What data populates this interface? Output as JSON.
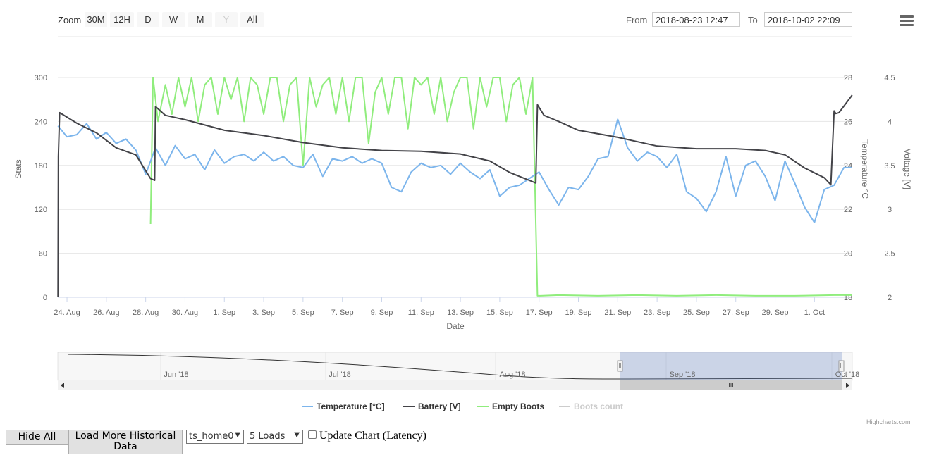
{
  "range_selector": {
    "zoom_label": "Zoom",
    "buttons": [
      "30M",
      "12H",
      "D",
      "W",
      "M",
      "Y",
      "All"
    ],
    "disabled_button": "Y",
    "from_label": "From",
    "from_value": "2018-08-23 12:47",
    "to_label": "To",
    "to_value": "2018-10-02 22:09"
  },
  "menu_icon": "hamburger-menu-icon",
  "chart_data": {
    "type": "line",
    "xlabel": "Date",
    "x_ticks": [
      "24. Aug",
      "26. Aug",
      "28. Aug",
      "30. Aug",
      "1. Sep",
      "3. Sep",
      "5. Sep",
      "7. Sep",
      "9. Sep",
      "11. Sep",
      "13. Sep",
      "15. Sep",
      "17. Sep",
      "19. Sep",
      "21. Sep",
      "23. Sep",
      "25. Sep",
      "27. Sep",
      "29. Sep",
      "1. Oct"
    ],
    "x_range": [
      "2018-08-23 12:47",
      "2018-10-02 22:09"
    ],
    "axes": {
      "stats": {
        "label": "Stats",
        "ticks": [
          "0",
          "60",
          "120",
          "180",
          "240",
          "300"
        ],
        "range": [
          0,
          300
        ]
      },
      "temperature": {
        "label": "Temperature °C",
        "ticks": [
          "18",
          "20",
          "22",
          "24",
          "26",
          "28"
        ],
        "range": [
          18,
          28
        ]
      },
      "voltage": {
        "label": "Voltage [V]",
        "ticks": [
          "2",
          "2.5",
          "3",
          "3.5",
          "4",
          "4.5"
        ],
        "range": [
          2,
          4.5
        ]
      }
    },
    "grid": true,
    "series": [
      {
        "name": "Temperature [°C]",
        "color": "#7cb5ec",
        "axis": "temperature",
        "x": [
          "2018-08-23 13:00",
          "2018-08-24 00:00",
          "2018-08-24 12:00",
          "2018-08-25 00:00",
          "2018-08-25 12:00",
          "2018-08-26 00:00",
          "2018-08-26 12:00",
          "2018-08-27 00:00",
          "2018-08-27 12:00",
          "2018-08-28 00:00",
          "2018-08-28 12:00",
          "2018-08-29 00:00",
          "2018-08-29 12:00",
          "2018-08-30 00:00",
          "2018-08-30 12:00",
          "2018-08-31 00:00",
          "2018-08-31 12:00",
          "2018-09-01 00:00",
          "2018-09-01 12:00",
          "2018-09-02 00:00",
          "2018-09-02 12:00",
          "2018-09-03 00:00",
          "2018-09-03 12:00",
          "2018-09-04 00:00",
          "2018-09-04 12:00",
          "2018-09-05 00:00",
          "2018-09-05 12:00",
          "2018-09-06 00:00",
          "2018-09-06 12:00",
          "2018-09-07 00:00",
          "2018-09-07 12:00",
          "2018-09-08 00:00",
          "2018-09-08 12:00",
          "2018-09-09 00:00",
          "2018-09-09 12:00",
          "2018-09-10 00:00",
          "2018-09-10 12:00",
          "2018-09-11 00:00",
          "2018-09-11 12:00",
          "2018-09-12 00:00",
          "2018-09-12 12:00",
          "2018-09-13 00:00",
          "2018-09-13 12:00",
          "2018-09-14 00:00",
          "2018-09-14 12:00",
          "2018-09-15 00:00",
          "2018-09-15 12:00",
          "2018-09-16 00:00",
          "2018-09-16 12:00",
          "2018-09-17 00:00",
          "2018-09-17 12:00",
          "2018-09-18 00:00",
          "2018-09-18 12:00",
          "2018-09-19 00:00",
          "2018-09-19 12:00",
          "2018-09-20 00:00",
          "2018-09-20 12:00",
          "2018-09-21 00:00",
          "2018-09-21 12:00",
          "2018-09-22 00:00",
          "2018-09-22 12:00",
          "2018-09-23 00:00",
          "2018-09-23 12:00",
          "2018-09-24 00:00",
          "2018-09-24 12:00",
          "2018-09-25 00:00",
          "2018-09-25 12:00",
          "2018-09-26 00:00",
          "2018-09-26 12:00",
          "2018-09-27 00:00",
          "2018-09-27 12:00",
          "2018-09-28 00:00",
          "2018-09-28 12:00",
          "2018-09-29 00:00",
          "2018-09-29 12:00",
          "2018-09-30 00:00",
          "2018-09-30 12:00",
          "2018-10-01 00:00",
          "2018-10-01 12:00",
          "2018-10-02 00:00",
          "2018-10-02 12:00",
          "2018-10-02 22:00"
        ],
        "values": [
          25.8,
          25.3,
          25.4,
          25.9,
          25.2,
          25.5,
          25.0,
          25.2,
          24.7,
          23.6,
          24.8,
          24.0,
          24.9,
          24.3,
          24.5,
          23.8,
          24.7,
          24.1,
          24.4,
          24.5,
          24.2,
          24.6,
          24.2,
          24.4,
          24.0,
          23.9,
          24.5,
          23.5,
          24.3,
          24.2,
          24.4,
          24.1,
          24.3,
          24.1,
          23.0,
          22.8,
          23.7,
          24.1,
          23.9,
          24.0,
          23.6,
          24.1,
          23.7,
          23.4,
          23.8,
          22.6,
          23.0,
          23.1,
          23.4,
          23.7,
          22.9,
          22.2,
          23.0,
          22.9,
          23.5,
          24.3,
          24.4,
          26.1,
          24.8,
          24.2,
          24.6,
          24.4,
          23.9,
          24.5,
          22.8,
          22.5,
          21.9,
          22.8,
          24.4,
          22.6,
          24.0,
          24.2,
          23.5,
          22.4,
          24.2,
          23.2,
          22.1,
          21.4,
          22.9,
          23.1,
          23.9,
          23.9
        ]
      },
      {
        "name": "Battery [V]",
        "color": "#434348",
        "axis": "voltage",
        "x": [
          "2018-08-23 13:00",
          "2018-08-23 13:30",
          "2018-08-23 15:00",
          "2018-08-24 12:00",
          "2018-08-25 12:00",
          "2018-08-26 12:00",
          "2018-08-27 12:00",
          "2018-08-28 06:00",
          "2018-08-28 11:00",
          "2018-08-28 12:00",
          "2018-08-29 00:00",
          "2018-08-30 00:00",
          "2018-09-01 00:00",
          "2018-09-03 00:00",
          "2018-09-05 00:00",
          "2018-09-07 00:00",
          "2018-09-09 00:00",
          "2018-09-11 00:00",
          "2018-09-13 00:00",
          "2018-09-14 12:00",
          "2018-09-15 12:00",
          "2018-09-16 12:00",
          "2018-09-16 20:00",
          "2018-09-16 22:00",
          "2018-09-17 06:00",
          "2018-09-18 00:00",
          "2018-09-19 00:00",
          "2018-09-21 00:00",
          "2018-09-23 00:00",
          "2018-09-25 00:00",
          "2018-09-27 00:00",
          "2018-09-28 12:00",
          "2018-09-29 12:00",
          "2018-09-30 12:00",
          "2018-10-01 12:00",
          "2018-10-01 20:00",
          "2018-10-02 00:00",
          "2018-10-02 02:00",
          "2018-10-02 06:00",
          "2018-10-02 22:00"
        ],
        "values": [
          2.0,
          3.6,
          4.1,
          3.98,
          3.87,
          3.7,
          3.62,
          3.35,
          3.33,
          4.17,
          4.07,
          4.02,
          3.9,
          3.84,
          3.76,
          3.7,
          3.67,
          3.66,
          3.63,
          3.55,
          3.42,
          3.33,
          3.3,
          4.19,
          4.07,
          4.0,
          3.9,
          3.82,
          3.72,
          3.69,
          3.69,
          3.67,
          3.62,
          3.47,
          3.36,
          3.28,
          4.12,
          4.09,
          4.1,
          4.3
        ]
      },
      {
        "name": "Empty Boots",
        "color": "#90ed7d",
        "axis": "stats",
        "x": [
          "2018-08-28 06:00",
          "2018-08-28 09:00",
          "2018-08-28 15:00",
          "2018-08-29 00:00",
          "2018-08-29 08:00",
          "2018-08-29 16:00",
          "2018-08-30 00:00",
          "2018-08-30 08:00",
          "2018-08-30 16:00",
          "2018-08-31 00:00",
          "2018-08-31 08:00",
          "2018-08-31 16:00",
          "2018-09-01 00:00",
          "2018-09-01 08:00",
          "2018-09-01 16:00",
          "2018-09-02 00:00",
          "2018-09-02 08:00",
          "2018-09-02 16:00",
          "2018-09-03 00:00",
          "2018-09-03 08:00",
          "2018-09-03 16:00",
          "2018-09-04 00:00",
          "2018-09-04 08:00",
          "2018-09-04 16:00",
          "2018-09-05 00:00",
          "2018-09-05 08:00",
          "2018-09-05 16:00",
          "2018-09-06 00:00",
          "2018-09-06 08:00",
          "2018-09-06 16:00",
          "2018-09-07 00:00",
          "2018-09-07 08:00",
          "2018-09-07 16:00",
          "2018-09-08 00:00",
          "2018-09-08 08:00",
          "2018-09-08 16:00",
          "2018-09-09 00:00",
          "2018-09-09 08:00",
          "2018-09-09 16:00",
          "2018-09-10 00:00",
          "2018-09-10 08:00",
          "2018-09-10 16:00",
          "2018-09-11 00:00",
          "2018-09-11 08:00",
          "2018-09-11 16:00",
          "2018-09-12 00:00",
          "2018-09-12 08:00",
          "2018-09-12 16:00",
          "2018-09-13 00:00",
          "2018-09-13 08:00",
          "2018-09-13 16:00",
          "2018-09-14 00:00",
          "2018-09-14 08:00",
          "2018-09-14 16:00",
          "2018-09-15 00:00",
          "2018-09-15 08:00",
          "2018-09-15 16:00",
          "2018-09-16 00:00",
          "2018-09-16 08:00",
          "2018-09-16 16:00",
          "2018-09-16 22:00",
          "2018-09-17 02:00",
          "2018-09-18 00:00",
          "2018-09-20 00:00",
          "2018-09-22 00:00",
          "2018-09-24 00:00",
          "2018-09-26 00:00",
          "2018-09-28 00:00",
          "2018-09-30 00:00",
          "2018-10-02 00:00",
          "2018-10-02 22:00"
        ],
        "values": [
          100,
          300,
          240,
          290,
          250,
          300,
          260,
          300,
          240,
          290,
          300,
          250,
          300,
          270,
          300,
          240,
          300,
          290,
          250,
          300,
          300,
          240,
          290,
          300,
          180,
          300,
          260,
          290,
          300,
          250,
          300,
          240,
          300,
          300,
          210,
          280,
          300,
          250,
          300,
          300,
          230,
          300,
          290,
          300,
          250,
          300,
          240,
          280,
          300,
          300,
          230,
          300,
          260,
          300,
          300,
          240,
          290,
          300,
          250,
          300,
          2,
          2,
          3,
          2,
          3,
          2,
          3,
          2,
          2,
          3,
          3
        ]
      },
      {
        "name": "Boots count",
        "color": "#cccccc",
        "axis": "stats",
        "hidden": true,
        "values": []
      }
    ],
    "legend": {
      "placement": "bottom-center",
      "items": [
        "Temperature [°C]",
        "Battery [V]",
        "Empty Boots",
        "Boots count"
      ]
    }
  },
  "navigator": {
    "labels": [
      "Jun '18",
      "Jul '18",
      "Aug '18",
      "Sep '18",
      "Oct '18"
    ],
    "scrollbar_grip": "III"
  },
  "credits": "Highcharts.com",
  "controls": {
    "hide_all_label": "Hide All",
    "load_more_label": "Load More Historical Data",
    "device_select_value": "ts_home0",
    "loads_select_value": "5 Loads",
    "update_chart_label": "Update Chart (Latency)"
  }
}
